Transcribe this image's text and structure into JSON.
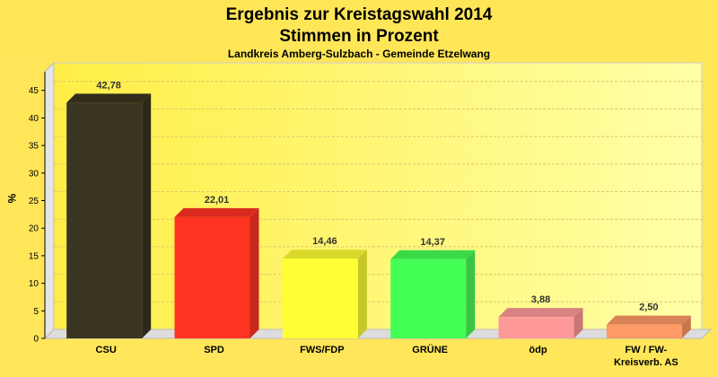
{
  "title_line1": "Ergebnis zur Kreistagswahl 2014",
  "title_line2": "Stimmen in Prozent",
  "subtitle": "Landkreis Amberg-Sulzbach - Gemeinde Etzelwang",
  "chart_data": {
    "type": "bar",
    "title": "Ergebnis zur Kreistagswahl 2014 Stimmen in Prozent",
    "subtitle": "Landkreis Amberg-Sulzbach - Gemeinde Etzelwang",
    "ylabel": "%",
    "xlabel": "",
    "ylim": [
      0,
      50
    ],
    "yticks": [
      0,
      5,
      10,
      15,
      20,
      25,
      30,
      35,
      40,
      45
    ],
    "grid": true,
    "categories": [
      "CSU",
      "SPD",
      "FWS/FDP",
      "GRÜNE",
      "ödp",
      "FW / FW-Kreisverb. AS"
    ],
    "category_lines": [
      [
        "CSU"
      ],
      [
        "SPD"
      ],
      [
        "FWS/FDP"
      ],
      [
        "GRÜNE"
      ],
      [
        "ödp"
      ],
      [
        "FW / FW-",
        "Kreisverb. AS"
      ]
    ],
    "values": [
      42.78,
      22.01,
      14.46,
      14.37,
      3.88,
      2.5
    ],
    "value_labels": [
      "42,78",
      "22,01",
      "14,46",
      "14,37",
      "3,88",
      "2,50"
    ],
    "colors": [
      "#3a3520",
      "#ff3322",
      "#ffff33",
      "#44ff55",
      "#ff9999",
      "#ff9966"
    ]
  }
}
